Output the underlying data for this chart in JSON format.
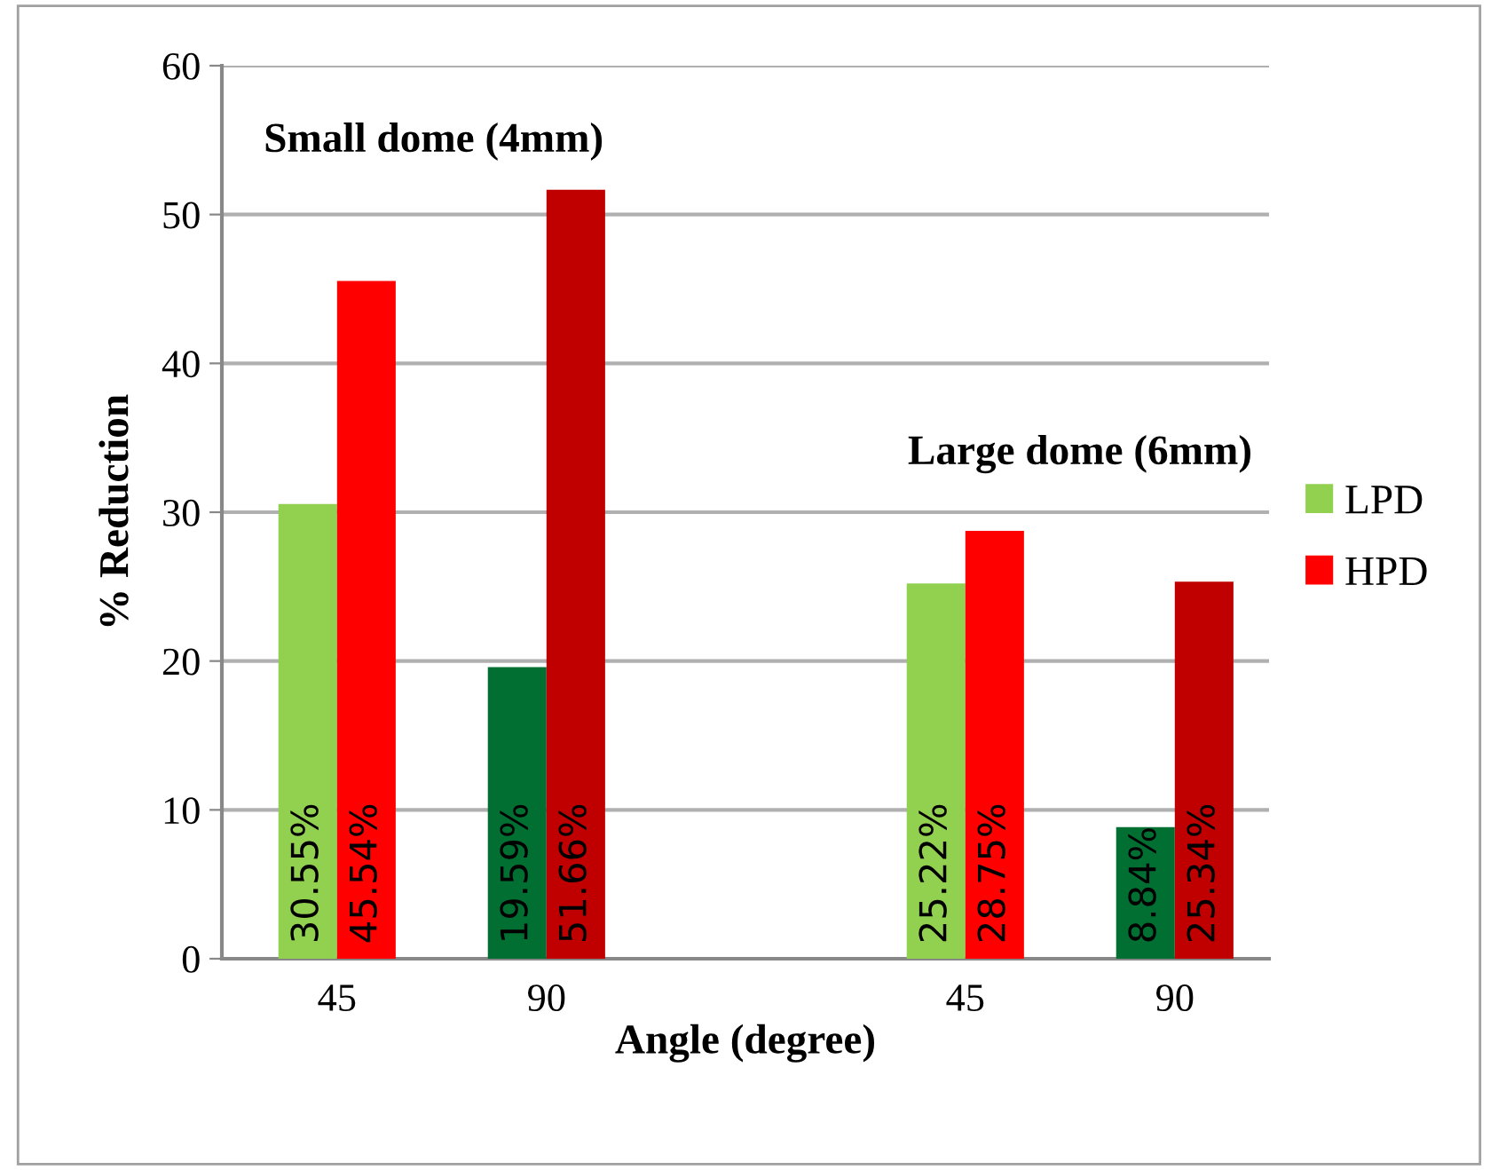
{
  "chart_data": {
    "type": "bar",
    "xlabel": "Angle (degree)",
    "ylabel": "% Reduction",
    "categories": [
      "45",
      "90",
      null,
      "45",
      "90"
    ],
    "series": [
      {
        "name": "LPD",
        "color": "#92d050",
        "colors": [
          "#92d050",
          "#006f31",
          null,
          "#92d050",
          "#006f31"
        ],
        "values": [
          30.55,
          19.59,
          null,
          25.22,
          8.84
        ],
        "value_labels": [
          "30.55%",
          "19.59%",
          null,
          "25.22%",
          "8.84%"
        ]
      },
      {
        "name": "HPD",
        "color": "#ff0000",
        "colors": [
          "#ff0000",
          "#c00000",
          null,
          "#ff0000",
          "#c00000"
        ],
        "values": [
          45.54,
          51.66,
          null,
          28.75,
          25.34
        ],
        "value_labels": [
          "45.54%",
          "51.66%",
          null,
          "28.75%",
          "25.34%"
        ]
      }
    ],
    "annotations": [
      "Small dome (4mm)",
      "Large dome (6mm)"
    ],
    "ylim": [
      0,
      60
    ],
    "yticks": [
      0,
      10,
      20,
      30,
      40,
      50,
      60
    ],
    "grid": "y",
    "legend": "right"
  }
}
